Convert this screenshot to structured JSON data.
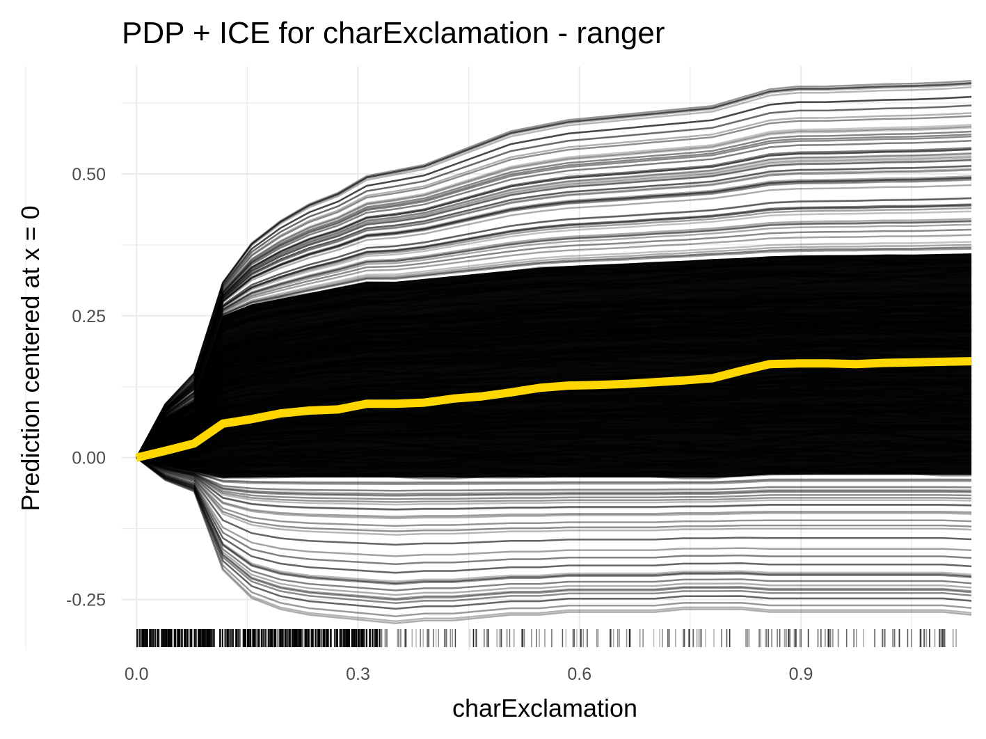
{
  "chart_data": {
    "type": "line",
    "title": "PDP + ICE for charExclamation - ranger",
    "xlabel": "charExclamation",
    "ylabel": "Prediction centered at x = 0",
    "xlim": [
      -0.02,
      1.13
    ],
    "ylim": [
      -0.34,
      0.69
    ],
    "x_ticks": [
      0.0,
      0.3,
      0.6,
      0.9
    ],
    "x_tick_labels": [
      "0.0",
      "0.3",
      "0.6",
      "0.9"
    ],
    "y_ticks": [
      -0.25,
      0.0,
      0.25,
      0.5
    ],
    "y_tick_labels": [
      "-0.25",
      "0.00",
      "0.25",
      "0.50"
    ],
    "grid": true,
    "x": [
      0.0,
      0.039,
      0.078,
      0.117,
      0.156,
      0.195,
      0.234,
      0.273,
      0.312,
      0.351,
      0.39,
      0.429,
      0.468,
      0.507,
      0.546,
      0.585,
      0.624,
      0.663,
      0.702,
      0.741,
      0.78,
      0.819,
      0.858,
      0.897,
      0.936,
      0.975,
      1.014,
      1.053,
      1.092,
      1.131
    ],
    "series": [
      {
        "role": "pdp",
        "color": "#FFD700",
        "values": [
          0.0,
          0.012,
          0.025,
          0.06,
          0.068,
          0.078,
          0.083,
          0.085,
          0.095,
          0.095,
          0.097,
          0.104,
          0.108,
          0.115,
          0.123,
          0.127,
          0.128,
          0.13,
          0.133,
          0.136,
          0.14,
          0.153,
          0.165,
          0.166,
          0.166,
          0.165,
          0.167,
          0.168,
          0.169,
          0.17
        ]
      }
    ],
    "ice": {
      "color": "#000000",
      "envelope_upper": [
        0.0,
        0.095,
        0.15,
        0.31,
        0.38,
        0.42,
        0.45,
        0.47,
        0.5,
        0.51,
        0.52,
        0.54,
        0.56,
        0.58,
        0.59,
        0.6,
        0.605,
        0.61,
        0.615,
        0.62,
        0.625,
        0.64,
        0.655,
        0.66,
        0.66,
        0.662,
        0.664,
        0.665,
        0.667,
        0.67
      ],
      "envelope_lower": [
        0.0,
        -0.04,
        -0.06,
        -0.2,
        -0.25,
        -0.27,
        -0.28,
        -0.285,
        -0.29,
        -0.295,
        -0.29,
        -0.29,
        -0.285,
        -0.28,
        -0.28,
        -0.275,
        -0.275,
        -0.275,
        -0.275,
        -0.27,
        -0.27,
        -0.27,
        -0.275,
        -0.275,
        -0.275,
        -0.275,
        -0.275,
        -0.275,
        -0.275,
        -0.28
      ],
      "dense_upper": [
        0.0,
        0.07,
        0.1,
        0.25,
        0.27,
        0.28,
        0.29,
        0.3,
        0.31,
        0.31,
        0.315,
        0.32,
        0.325,
        0.33,
        0.335,
        0.338,
        0.34,
        0.342,
        0.345,
        0.347,
        0.35,
        0.352,
        0.355,
        0.356,
        0.357,
        0.357,
        0.358,
        0.358,
        0.359,
        0.36
      ],
      "dense_lower": [
        0.0,
        -0.015,
        -0.025,
        -0.035,
        -0.035,
        -0.035,
        -0.035,
        -0.035,
        -0.035,
        -0.035,
        -0.035,
        -0.035,
        -0.035,
        -0.035,
        -0.035,
        -0.035,
        -0.035,
        -0.035,
        -0.035,
        -0.035,
        -0.035,
        -0.033,
        -0.03,
        -0.03,
        -0.03,
        -0.03,
        -0.03,
        -0.03,
        -0.03,
        -0.03
      ]
    }
  }
}
